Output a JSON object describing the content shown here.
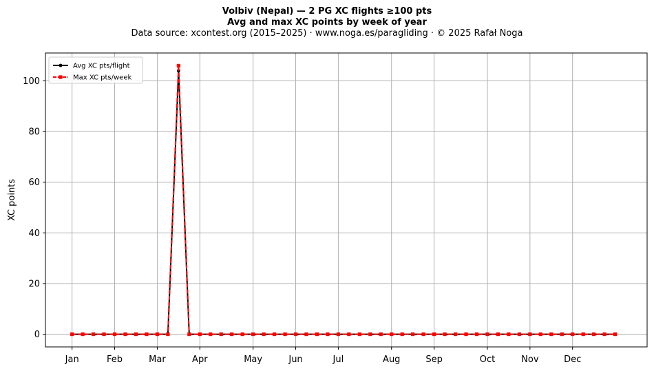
{
  "chart_data": {
    "type": "line",
    "title": "Volbiv (Nepal)  —  2 PG XC flights ≥100 pts",
    "subtitle": "Avg and max XC points by week of year",
    "source_line": "Data source: xcontest.org (2015–2025)  ·  www.noga.es/paragliding  ·  © 2025 Rafał Noga",
    "xlabel": "",
    "ylabel": "XC points",
    "ylim": [
      -5,
      111
    ],
    "yticks": [
      0,
      20,
      40,
      60,
      80,
      100
    ],
    "x_tick_labels": [
      "Jan",
      "Feb",
      "Mar",
      "Apr",
      "May",
      "Jun",
      "Jul",
      "Aug",
      "Sep",
      "Oct",
      "Nov",
      "Dec"
    ],
    "x_tick_weeks": [
      1,
      5,
      9,
      13,
      18,
      22,
      26,
      31,
      35,
      40,
      44,
      48
    ],
    "xlim": [
      -1.5,
      55
    ],
    "grid": true,
    "legend_position": "top-left",
    "weeks": [
      1,
      2,
      3,
      4,
      5,
      6,
      7,
      8,
      9,
      10,
      11,
      12,
      13,
      14,
      15,
      16,
      17,
      18,
      19,
      20,
      21,
      22,
      23,
      24,
      25,
      26,
      27,
      28,
      29,
      30,
      31,
      32,
      33,
      34,
      35,
      36,
      37,
      38,
      39,
      40,
      41,
      42,
      43,
      44,
      45,
      46,
      47,
      48,
      49,
      50,
      51,
      52
    ],
    "series": [
      {
        "name": "Avg XC pts/flight",
        "color": "#000000",
        "line_style": "solid",
        "marker": "circle",
        "values": [
          0,
          0,
          0,
          0,
          0,
          0,
          0,
          0,
          0,
          0,
          104,
          0,
          0,
          0,
          0,
          0,
          0,
          0,
          0,
          0,
          0,
          0,
          0,
          0,
          0,
          0,
          0,
          0,
          0,
          0,
          0,
          0,
          0,
          0,
          0,
          0,
          0,
          0,
          0,
          0,
          0,
          0,
          0,
          0,
          0,
          0,
          0,
          0,
          0,
          0,
          0,
          0
        ]
      },
      {
        "name": "Max XC pts/week",
        "color": "#ff0000",
        "line_style": "dashed",
        "marker": "square",
        "values": [
          0,
          0,
          0,
          0,
          0,
          0,
          0,
          0,
          0,
          0,
          106,
          0,
          0,
          0,
          0,
          0,
          0,
          0,
          0,
          0,
          0,
          0,
          0,
          0,
          0,
          0,
          0,
          0,
          0,
          0,
          0,
          0,
          0,
          0,
          0,
          0,
          0,
          0,
          0,
          0,
          0,
          0,
          0,
          0,
          0,
          0,
          0,
          0,
          0,
          0,
          0,
          0
        ]
      }
    ]
  }
}
